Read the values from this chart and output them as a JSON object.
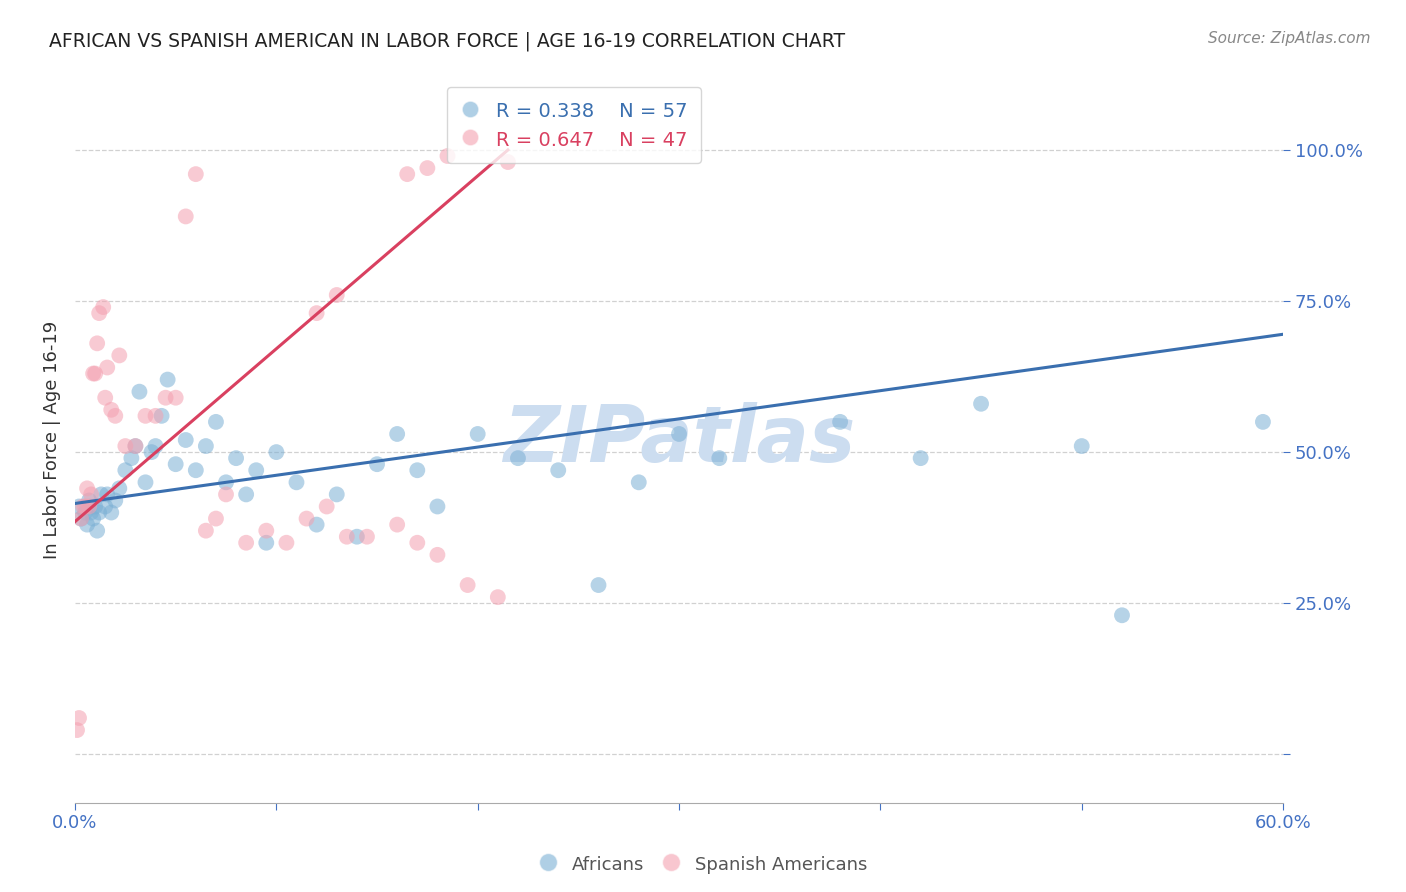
{
  "title": "AFRICAN VS SPANISH AMERICAN IN LABOR FORCE | AGE 16-19 CORRELATION CHART",
  "source": "Source: ZipAtlas.com",
  "ylabel": "In Labor Force | Age 16-19",
  "xlim": [
    0.0,
    0.6
  ],
  "ylim": [
    -0.08,
    1.12
  ],
  "yticks": [
    0.0,
    0.25,
    0.5,
    0.75,
    1.0
  ],
  "ytick_labels": [
    "",
    "25.0%",
    "50.0%",
    "75.0%",
    "100.0%"
  ],
  "xticks": [
    0.0,
    0.1,
    0.2,
    0.3,
    0.4,
    0.5,
    0.6
  ],
  "xtick_labels": [
    "0.0%",
    "",
    "",
    "",
    "",
    "",
    "60.0%"
  ],
  "background_color": "#ffffff",
  "grid_color": "#cccccc",
  "title_color": "#222222",
  "source_color": "#888888",
  "watermark_text": "ZIPatlas",
  "watermark_color": "#ccddf0",
  "africans_color": "#7bafd4",
  "spanish_color": "#f4a0b0",
  "africans_line_color": "#3a6faf",
  "spanish_line_color": "#d94060",
  "tick_color": "#4472c4",
  "legend_africans_r": "R = 0.338",
  "legend_africans_n": "N = 57",
  "legend_spanish_r": "R = 0.647",
  "legend_spanish_n": "N = 47",
  "blue_trend": [
    0.0,
    0.415,
    0.6,
    0.695
  ],
  "pink_trend": [
    0.0,
    0.385,
    0.215,
    1.0
  ],
  "africans_x": [
    0.002,
    0.003,
    0.005,
    0.006,
    0.007,
    0.008,
    0.009,
    0.01,
    0.011,
    0.012,
    0.013,
    0.015,
    0.016,
    0.018,
    0.02,
    0.022,
    0.025,
    0.028,
    0.03,
    0.032,
    0.035,
    0.038,
    0.04,
    0.043,
    0.046,
    0.05,
    0.055,
    0.06,
    0.065,
    0.07,
    0.075,
    0.08,
    0.085,
    0.09,
    0.095,
    0.1,
    0.11,
    0.12,
    0.13,
    0.14,
    0.15,
    0.16,
    0.17,
    0.18,
    0.2,
    0.22,
    0.24,
    0.26,
    0.28,
    0.3,
    0.32,
    0.38,
    0.42,
    0.45,
    0.5,
    0.52,
    0.59
  ],
  "africans_y": [
    0.41,
    0.39,
    0.4,
    0.38,
    0.42,
    0.4,
    0.39,
    0.41,
    0.37,
    0.4,
    0.43,
    0.41,
    0.43,
    0.4,
    0.42,
    0.44,
    0.47,
    0.49,
    0.51,
    0.6,
    0.45,
    0.5,
    0.51,
    0.56,
    0.62,
    0.48,
    0.52,
    0.47,
    0.51,
    0.55,
    0.45,
    0.49,
    0.43,
    0.47,
    0.35,
    0.5,
    0.45,
    0.38,
    0.43,
    0.36,
    0.48,
    0.53,
    0.47,
    0.41,
    0.53,
    0.49,
    0.47,
    0.28,
    0.45,
    0.53,
    0.49,
    0.55,
    0.49,
    0.58,
    0.51,
    0.23,
    0.55
  ],
  "spanish_x": [
    0.001,
    0.002,
    0.003,
    0.004,
    0.005,
    0.006,
    0.007,
    0.008,
    0.009,
    0.01,
    0.011,
    0.012,
    0.014,
    0.015,
    0.016,
    0.018,
    0.02,
    0.022,
    0.025,
    0.03,
    0.035,
    0.04,
    0.045,
    0.05,
    0.055,
    0.06,
    0.065,
    0.07,
    0.075,
    0.085,
    0.095,
    0.105,
    0.115,
    0.125,
    0.135,
    0.145,
    0.16,
    0.17,
    0.18,
    0.195,
    0.21,
    0.12,
    0.13,
    0.165,
    0.175,
    0.185,
    0.215
  ],
  "spanish_y": [
    0.04,
    0.06,
    0.39,
    0.41,
    0.41,
    0.44,
    0.41,
    0.43,
    0.63,
    0.63,
    0.68,
    0.73,
    0.74,
    0.59,
    0.64,
    0.57,
    0.56,
    0.66,
    0.51,
    0.51,
    0.56,
    0.56,
    0.59,
    0.59,
    0.89,
    0.96,
    0.37,
    0.39,
    0.43,
    0.35,
    0.37,
    0.35,
    0.39,
    0.41,
    0.36,
    0.36,
    0.38,
    0.35,
    0.33,
    0.28,
    0.26,
    0.73,
    0.76,
    0.96,
    0.97,
    0.99,
    0.98
  ]
}
